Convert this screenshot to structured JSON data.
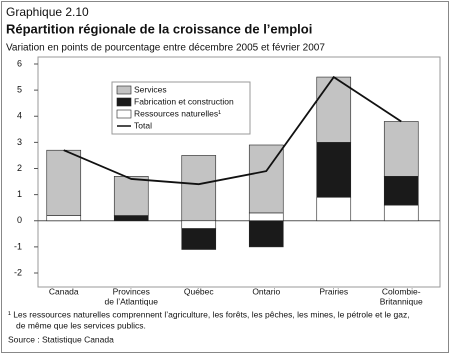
{
  "chart_data": {
    "type": "stacked-bar-line",
    "label": "Graphique 2.10",
    "title": "Répartition régionale de la croissance de l’emploi",
    "subtitle": "Variation en points de pourcentage entre décembre 2005 et février 2007",
    "categories": [
      [
        "Canada"
      ],
      [
        "Provinces",
        "de l’Atlantique"
      ],
      [
        "Québec"
      ],
      [
        "Ontario"
      ],
      [
        "Prairies"
      ],
      [
        "Colombie-",
        "Britannique"
      ]
    ],
    "series": [
      {
        "name": "Services",
        "color": "#c3c3c3",
        "values": [
          2.5,
          1.5,
          2.5,
          2.6,
          2.5,
          2.1
        ]
      },
      {
        "name": "Fabrication et construction",
        "color": "#1a1a1a",
        "values": [
          0,
          0.2,
          -0.8,
          -1.0,
          2.1,
          1.1
        ]
      },
      {
        "name": "Ressources naturelles¹",
        "color": "#ffffff",
        "values": [
          0.2,
          0,
          -0.3,
          0.3,
          0.9,
          0.6
        ]
      },
      {
        "name": "Total",
        "color": "#111111",
        "type": "line",
        "values": [
          2.7,
          1.6,
          1.4,
          1.9,
          5.5,
          3.8
        ]
      }
    ],
    "ylim": [
      -2,
      6
    ],
    "yticks": [
      -2,
      -1,
      0,
      1,
      2,
      3,
      4,
      5,
      6
    ],
    "footnote": [
      "¹ Les ressources naturelles comprennent l’agriculture, les forêts, les pêches, les mines, le pétrole et le gaz,",
      "de même que les services publics."
    ],
    "source": "Source : Statistique Canada"
  }
}
